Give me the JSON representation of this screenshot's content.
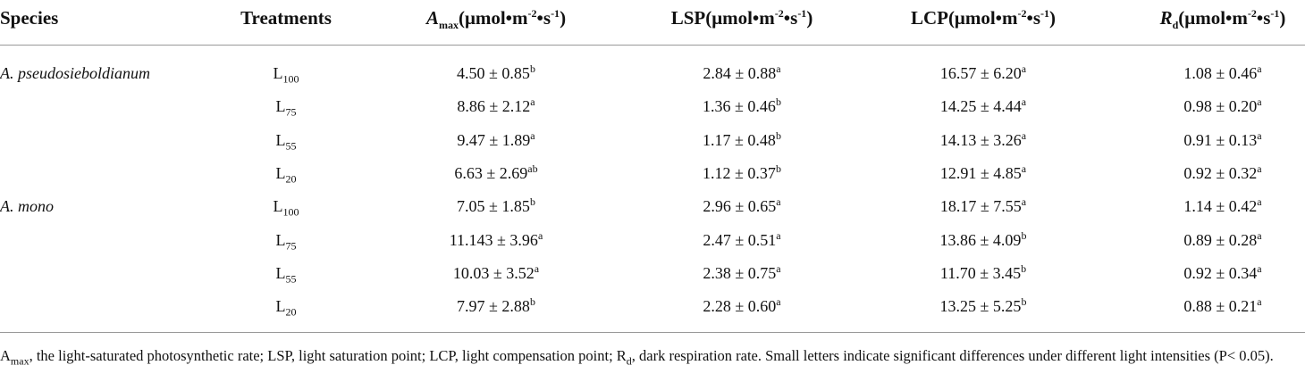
{
  "table": {
    "headers": [
      [
        {
          "text": "Species"
        }
      ],
      [
        {
          "text": "Treatments"
        }
      ],
      [
        {
          "text": "A",
          "style": "i"
        },
        {
          "text": "max",
          "style": "sub"
        },
        {
          "text": "(μmol•m"
        },
        {
          "text": "-2",
          "style": "sup"
        },
        {
          "text": "•s"
        },
        {
          "text": "-1",
          "style": "sup"
        },
        {
          "text": ")"
        }
      ],
      [
        {
          "text": "LSP(μmol•m"
        },
        {
          "text": "-2",
          "style": "sup"
        },
        {
          "text": "•s"
        },
        {
          "text": "-1",
          "style": "sup"
        },
        {
          "text": ")"
        }
      ],
      [
        {
          "text": "LCP(μmol•m"
        },
        {
          "text": "-2",
          "style": "sup"
        },
        {
          "text": "•s"
        },
        {
          "text": "-1",
          "style": "sup"
        },
        {
          "text": ")"
        }
      ],
      [
        {
          "text": "R",
          "style": "i"
        },
        {
          "text": "d",
          "style": "sub"
        },
        {
          "text": "(μmol•m"
        },
        {
          "text": "-2",
          "style": "sup"
        },
        {
          "text": "•s"
        },
        {
          "text": "-1",
          "style": "sup"
        },
        {
          "text": ")"
        }
      ]
    ],
    "groups": [
      {
        "species": "A. pseudosieboldianum",
        "rows": [
          {
            "treatment": {
              "base": "L",
              "sub": "100"
            },
            "cells": [
              {
                "value": "4.50 ± 0.85",
                "sup": "b"
              },
              {
                "value": "2.84 ± 0.88",
                "sup": "a"
              },
              {
                "value": "16.57 ± 6.20",
                "sup": "a"
              },
              {
                "value": "1.08 ± 0.46",
                "sup": "a"
              }
            ]
          },
          {
            "treatment": {
              "base": "L",
              "sub": "75"
            },
            "cells": [
              {
                "value": "8.86 ± 2.12",
                "sup": "a"
              },
              {
                "value": "1.36 ± 0.46",
                "sup": "b"
              },
              {
                "value": "14.25 ± 4.44",
                "sup": "a"
              },
              {
                "value": "0.98 ± 0.20",
                "sup": "a"
              }
            ]
          },
          {
            "treatment": {
              "base": "L",
              "sub": "55"
            },
            "cells": [
              {
                "value": "9.47 ± 1.89",
                "sup": "a"
              },
              {
                "value": "1.17 ± 0.48",
                "sup": "b"
              },
              {
                "value": "14.13 ± 3.26",
                "sup": "a"
              },
              {
                "value": "0.91 ± 0.13",
                "sup": "a"
              }
            ]
          },
          {
            "treatment": {
              "base": "L",
              "sub": "20"
            },
            "cells": [
              {
                "value": "6.63 ± 2.69",
                "sup": "ab"
              },
              {
                "value": "1.12 ± 0.37",
                "sup": "b"
              },
              {
                "value": "12.91 ± 4.85",
                "sup": "a"
              },
              {
                "value": "0.92 ± 0.32",
                "sup": "a"
              }
            ]
          }
        ]
      },
      {
        "species": "A. mono",
        "rows": [
          {
            "treatment": {
              "base": "L",
              "sub": "100"
            },
            "cells": [
              {
                "value": "7.05 ± 1.85",
                "sup": "b"
              },
              {
                "value": "2.96 ± 0.65",
                "sup": "a"
              },
              {
                "value": "18.17 ± 7.55",
                "sup": "a"
              },
              {
                "value": "1.14 ± 0.42",
                "sup": "a"
              }
            ]
          },
          {
            "treatment": {
              "base": "L",
              "sub": "75"
            },
            "cells": [
              {
                "value": "11.143 ± 3.96",
                "sup": "a"
              },
              {
                "value": "2.47 ± 0.51",
                "sup": "a"
              },
              {
                "value": "13.86 ± 4.09",
                "sup": "b"
              },
              {
                "value": "0.89 ± 0.28",
                "sup": "a"
              }
            ]
          },
          {
            "treatment": {
              "base": "L",
              "sub": "55"
            },
            "cells": [
              {
                "value": "10.03 ± 3.52",
                "sup": "a"
              },
              {
                "value": "2.38 ± 0.75",
                "sup": "a"
              },
              {
                "value": "11.70 ± 3.45",
                "sup": "b"
              },
              {
                "value": "0.92 ± 0.34",
                "sup": "a"
              }
            ]
          },
          {
            "treatment": {
              "base": "L",
              "sub": "20"
            },
            "cells": [
              {
                "value": "7.97 ± 2.88",
                "sup": "b"
              },
              {
                "value": "2.28 ± 0.60",
                "sup": "a"
              },
              {
                "value": "13.25 ± 5.25",
                "sup": "b"
              },
              {
                "value": "0.88 ± 0.21",
                "sup": "a"
              }
            ]
          }
        ]
      }
    ],
    "footnote": [
      {
        "text": "A"
      },
      {
        "text": "max",
        "style": "sub"
      },
      {
        "text": ", the light-saturated photosynthetic rate; LSP, light saturation point; LCP, light compensation point; R"
      },
      {
        "text": "d",
        "style": "sub"
      },
      {
        "text": ", dark respiration rate. Small letters indicate significant differences under different light intensities (P< 0.05)."
      }
    ]
  }
}
